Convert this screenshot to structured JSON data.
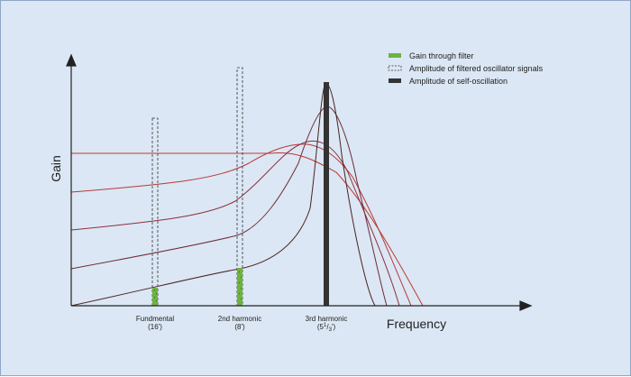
{
  "legend": {
    "gain_through_filter": "Gain through filter",
    "amplitude_filtered": "Amplitude of filtered oscillator signals",
    "amplitude_self_oscillation": "Amplitude of self-oscillation"
  },
  "axes": {
    "y_label": "Gain",
    "x_label": "Frequency"
  },
  "harmonics": [
    {
      "name": "Fundmental",
      "sub": "(16')"
    },
    {
      "name": "2nd harmonic",
      "sub": "(8')"
    },
    {
      "name": "3rd harmonic",
      "sub_main": "(5",
      "sub_sup": "1",
      "sub_mid": "/",
      "sub_sub": "3",
      "sub_end": "')"
    }
  ],
  "colors": {
    "background": "#dbe7f4",
    "gain_green": "#6db33f",
    "self_osc": "#333333",
    "curve_red": "#c03a32",
    "curve_dark": "#5a2a2a"
  }
}
